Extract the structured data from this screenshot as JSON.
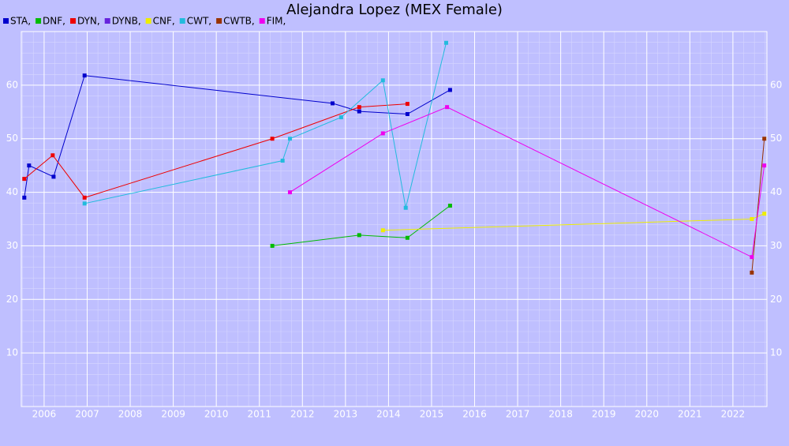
{
  "chart_data": {
    "type": "line",
    "title": "Alejandra Lopez (MEX Female)",
    "xlim": [
      2005.47,
      2022.79
    ],
    "xticks": [
      2006,
      2007,
      2008,
      2009,
      2010,
      2011,
      2012,
      2013,
      2014,
      2015,
      2016,
      2017,
      2018,
      2019,
      2020,
      2021,
      2022
    ],
    "ylim": [
      0,
      70
    ],
    "yticks": [
      10,
      20,
      30,
      40,
      50,
      60
    ],
    "grid": true,
    "series": [
      {
        "name": "STA,",
        "color": "#0000cc",
        "x": [
          2005.54,
          2005.65,
          2006.22,
          2006.94,
          2012.7,
          2013.32,
          2014.44,
          2015.43
        ],
        "values": [
          39,
          45,
          42.9,
          61.8,
          56.6,
          55.1,
          54.6,
          59.1
        ]
      },
      {
        "name": "DNF,",
        "color": "#00bb00",
        "x": [
          2011.3,
          2013.32,
          2014.44,
          2015.43
        ],
        "values": [
          30,
          32,
          31.5,
          37.5
        ]
      },
      {
        "name": "DYN,",
        "color": "#ee0000",
        "x": [
          2005.54,
          2006.2,
          2006.94,
          2011.3,
          2013.32,
          2014.44
        ],
        "values": [
          42.5,
          46.9,
          39,
          50,
          55.9,
          56.5
        ]
      },
      {
        "name": "DYNB,",
        "color": "#6622dd",
        "x": [],
        "values": []
      },
      {
        "name": "CNF,",
        "color": "#eeee00",
        "x": [
          2013.87,
          2022.44,
          2022.73
        ],
        "values": [
          32.9,
          35,
          36
        ]
      },
      {
        "name": "CWT,",
        "color": "#22bbdd",
        "x": [
          2006.94,
          2011.54,
          2011.71,
          2012.9,
          2013.87,
          2014.4,
          2015.34
        ],
        "values": [
          37.9,
          45.9,
          50,
          54,
          60.9,
          37.1,
          67.9
        ]
      },
      {
        "name": "CWTB,",
        "color": "#993300",
        "x": [
          2022.44,
          2022.73
        ],
        "values": [
          25,
          50
        ]
      },
      {
        "name": "FIM,",
        "color": "#ee00ee",
        "x": [
          2011.71,
          2013.87,
          2015.36,
          2022.44,
          2022.73
        ],
        "values": [
          40,
          51,
          55.9,
          27.9,
          45
        ]
      }
    ]
  }
}
